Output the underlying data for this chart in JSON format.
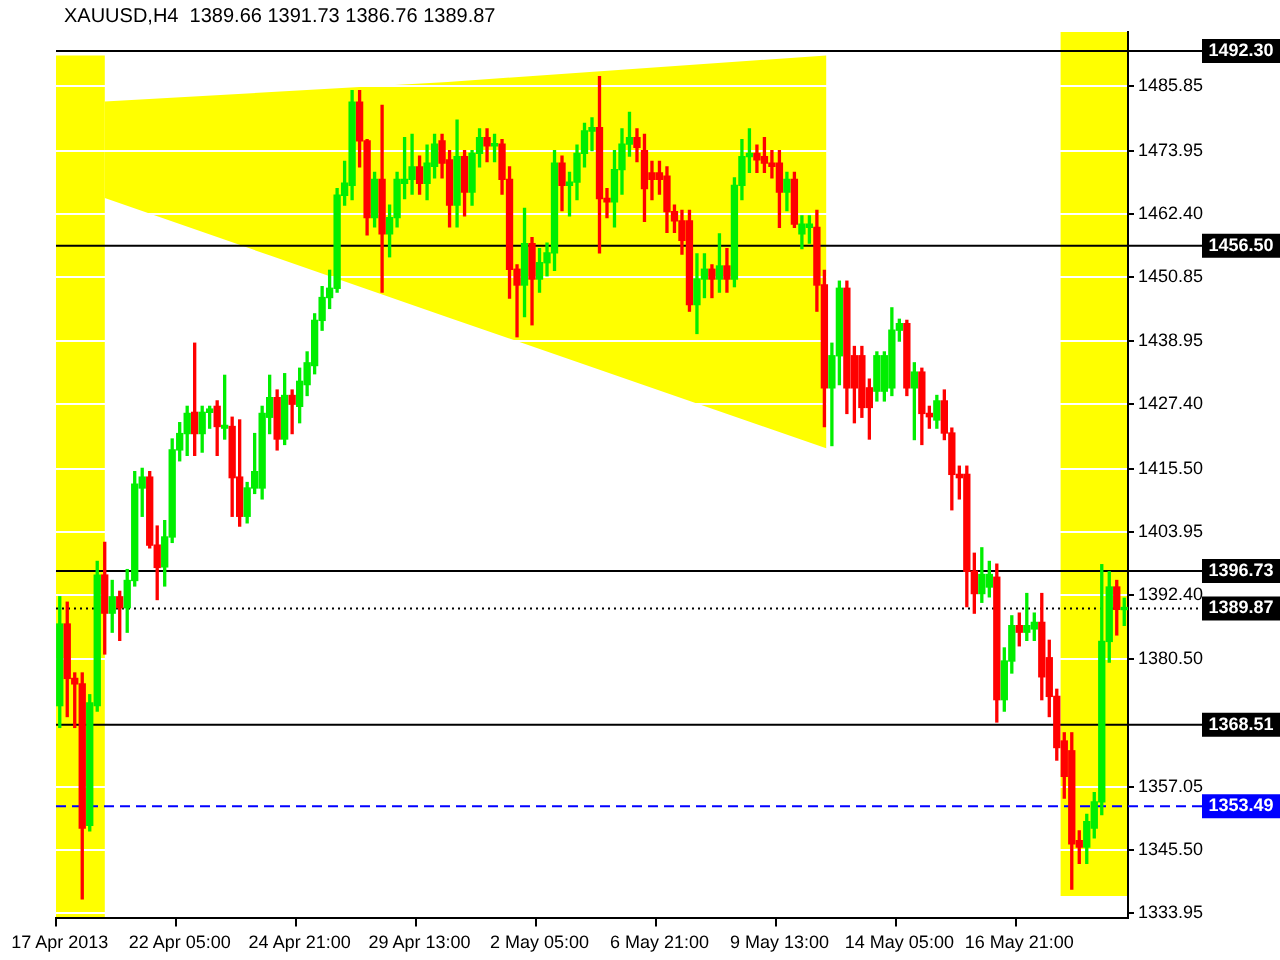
{
  "chart_data": {
    "type": "candlestick",
    "title": "XAUUSD,H4  1389.66 1391.73 1386.76 1389.87",
    "categories": [
      "17 Apr 2013",
      null,
      null,
      null,
      null,
      null,
      null,
      null,
      null,
      null,
      null,
      null,
      null,
      null,
      null,
      null,
      "22 Apr 05:00",
      null,
      null,
      null,
      null,
      null,
      null,
      null,
      null,
      null,
      null,
      null,
      null,
      null,
      null,
      null,
      "24 Apr 21:00",
      null,
      null,
      null,
      null,
      null,
      null,
      null,
      null,
      null,
      null,
      null,
      null,
      null,
      null,
      null,
      "29 Apr 13:00",
      null,
      null,
      null,
      null,
      null,
      null,
      null,
      null,
      null,
      null,
      null,
      null,
      null,
      null,
      null,
      "2 May 05:00",
      null,
      null,
      null,
      null,
      null,
      null,
      null,
      null,
      null,
      null,
      null,
      null,
      null,
      null,
      null,
      "6 May 21:00",
      null,
      null,
      null,
      null,
      null,
      null,
      null,
      null,
      null,
      null,
      null,
      null,
      null,
      null,
      null,
      "9 May 13:00",
      null,
      null,
      null,
      null,
      null,
      null,
      null,
      null,
      null,
      null,
      null,
      null,
      null,
      null,
      null,
      "14 May 05:00",
      null,
      null,
      null,
      null,
      null,
      null,
      null,
      null,
      null,
      null,
      null,
      null,
      null,
      null,
      null,
      "16 May 21:00",
      null,
      null,
      null,
      null,
      null,
      null,
      null,
      null,
      null,
      null,
      null,
      null,
      null,
      null
    ],
    "ohlc": [
      [
        1372,
        1392,
        1368,
        1387
      ],
      [
        1387,
        1391,
        1370,
        1377
      ],
      [
        1377,
        1378,
        1368,
        1376
      ],
      [
        1376,
        1378,
        1336.5,
        1349.5
      ],
      [
        1350,
        1374,
        1349,
        1372.5
      ],
      [
        1372,
        1398.5,
        1371,
        1396
      ],
      [
        1396,
        1402,
        1381.5,
        1389
      ],
      [
        1389,
        1395,
        1385.5,
        1392
      ],
      [
        1392,
        1393,
        1384,
        1390
      ],
      [
        1390,
        1397,
        1385.5,
        1395
      ],
      [
        1395,
        1415,
        1394,
        1412.7
      ],
      [
        1412,
        1415.6,
        1406.8,
        1414
      ],
      [
        1414,
        1415,
        1401,
        1401.5
      ],
      [
        1401.5,
        1405,
        1391.5,
        1397.4
      ],
      [
        1397.5,
        1406,
        1394,
        1403
      ],
      [
        1403,
        1421,
        1402,
        1419
      ],
      [
        1419,
        1424,
        1417,
        1422
      ],
      [
        1422,
        1427,
        1418,
        1425.7
      ],
      [
        1425.9,
        1438.6,
        1418,
        1422
      ],
      [
        1422,
        1427,
        1418.6,
        1425.9
      ],
      [
        1425.9,
        1427,
        1423,
        1426.5
      ],
      [
        1427,
        1428,
        1418,
        1423.3
      ],
      [
        1423,
        1432.7,
        1421,
        1423.5
      ],
      [
        1423.3,
        1425,
        1406.8,
        1413.9
      ],
      [
        1414,
        1424.5,
        1405,
        1406.8
      ],
      [
        1406.8,
        1413,
        1405.6,
        1412
      ],
      [
        1412,
        1422,
        1411,
        1415
      ],
      [
        1412,
        1427,
        1410,
        1425.7
      ],
      [
        1425,
        1432.7,
        1422,
        1428.6
      ],
      [
        1428.6,
        1430,
        1419,
        1421
      ],
      [
        1421,
        1433,
        1420,
        1429
      ],
      [
        1429,
        1430,
        1422,
        1427.4
      ],
      [
        1427,
        1434,
        1424,
        1431.6
      ],
      [
        1431,
        1437,
        1429,
        1435
      ],
      [
        1434.5,
        1444,
        1433,
        1442.8
      ],
      [
        1442.8,
        1449,
        1441,
        1447
      ],
      [
        1447,
        1452,
        1445,
        1448.7
      ],
      [
        1448.7,
        1467,
        1448,
        1465.8
      ],
      [
        1465.8,
        1472,
        1464,
        1468
      ],
      [
        1467.6,
        1485,
        1465,
        1482.9
      ],
      [
        1482.9,
        1485,
        1471,
        1475.8
      ],
      [
        1475.8,
        1476,
        1458.5,
        1461.7
      ],
      [
        1461.7,
        1470,
        1460,
        1468.7
      ],
      [
        1468.7,
        1482.3,
        1448,
        1458.7
      ],
      [
        1458.7,
        1464,
        1454.5,
        1461.7
      ],
      [
        1461.7,
        1470,
        1460,
        1468.7
      ],
      [
        1468,
        1476.4,
        1465.2,
        1468.7
      ],
      [
        1468.7,
        1477,
        1466,
        1471
      ],
      [
        1471,
        1473,
        1466,
        1468
      ],
      [
        1468,
        1475,
        1465,
        1471.7
      ],
      [
        1471.1,
        1477,
        1469,
        1475.2
      ],
      [
        1475.8,
        1477,
        1469,
        1471.7
      ],
      [
        1472.3,
        1474,
        1460,
        1464
      ],
      [
        1464,
        1479.6,
        1460,
        1472.9
      ],
      [
        1472.9,
        1474,
        1462,
        1466.4
      ],
      [
        1466.4,
        1474,
        1464,
        1473.5
      ],
      [
        1473.5,
        1478,
        1471,
        1476.4
      ],
      [
        1476.4,
        1478,
        1472,
        1474.9
      ],
      [
        1474.9,
        1477,
        1472,
        1475.2
      ],
      [
        1475.2,
        1476,
        1466,
        1468.7
      ],
      [
        1468.7,
        1471,
        1446.9,
        1452.2
      ],
      [
        1452.2,
        1453,
        1439.8,
        1449.3
      ],
      [
        1449.3,
        1463.4,
        1443.5,
        1456.9
      ],
      [
        1456.9,
        1458,
        1442,
        1450.4
      ],
      [
        1450.4,
        1456,
        1448,
        1453.4
      ],
      [
        1453.4,
        1457,
        1451,
        1455.2
      ],
      [
        1455.2,
        1474,
        1452,
        1471.7
      ],
      [
        1471.7,
        1473,
        1463,
        1467.6
      ],
      [
        1467.6,
        1470,
        1462,
        1468.2
      ],
      [
        1468.2,
        1475,
        1465,
        1473.5
      ],
      [
        1473.5,
        1479,
        1471,
        1477.6
      ],
      [
        1477.6,
        1480,
        1474,
        1478.2
      ],
      [
        1478.2,
        1487.6,
        1455.2,
        1465.2
      ],
      [
        1465.2,
        1467,
        1461.7,
        1464.6
      ],
      [
        1464.6,
        1474,
        1460,
        1470.5
      ],
      [
        1470.5,
        1478,
        1466,
        1475.2
      ],
      [
        1475.2,
        1481,
        1473,
        1476.4
      ],
      [
        1476.4,
        1478,
        1472,
        1474.6
      ],
      [
        1474,
        1477,
        1461,
        1467
      ],
      [
        1469.9,
        1472,
        1465,
        1468.7
      ],
      [
        1469.9,
        1472,
        1466,
        1468.7
      ],
      [
        1469.3,
        1471,
        1459,
        1462.8
      ],
      [
        1462.8,
        1464,
        1459,
        1461.1
      ],
      [
        1461.1,
        1463,
        1455,
        1457.5
      ],
      [
        1461.1,
        1463,
        1444.5,
        1445.7
      ],
      [
        1445.7,
        1455,
        1440.4,
        1450.4
      ],
      [
        1450.4,
        1455,
        1447,
        1452.2
      ],
      [
        1452.2,
        1453,
        1447,
        1450.4
      ],
      [
        1450.4,
        1458.7,
        1448,
        1452.8
      ],
      [
        1452.8,
        1456,
        1448,
        1450.4
      ],
      [
        1450.4,
        1469,
        1449,
        1467.6
      ],
      [
        1467.6,
        1476,
        1465,
        1472.9
      ],
      [
        1472.9,
        1478,
        1470,
        1473.5
      ],
      [
        1473.5,
        1475,
        1470,
        1472.3
      ],
      [
        1472.9,
        1476.4,
        1470,
        1471.7
      ],
      [
        1471.7,
        1474,
        1469,
        1471.1
      ],
      [
        1471.7,
        1474,
        1459.9,
        1466.4
      ],
      [
        1466.4,
        1470,
        1463,
        1468.7
      ],
      [
        1468.7,
        1470,
        1459.9,
        1460.5
      ],
      [
        1458.7,
        1462,
        1456,
        1460.5
      ],
      [
        1459.9,
        1462,
        1457,
        1460.5
      ],
      [
        1459.9,
        1463,
        1444.5,
        1449.3
      ],
      [
        1449.3,
        1452,
        1423.3,
        1430.4
      ],
      [
        1430.4,
        1438.6,
        1419.8,
        1436.3
      ],
      [
        1436.3,
        1450,
        1431,
        1448.7
      ],
      [
        1448.7,
        1450,
        1425.7,
        1430.4
      ],
      [
        1436.3,
        1438,
        1424,
        1430.4
      ],
      [
        1436.3,
        1438,
        1425,
        1426.8
      ],
      [
        1430.4,
        1432,
        1421,
        1426.8
      ],
      [
        1429.8,
        1437,
        1428,
        1436.3
      ],
      [
        1429.8,
        1437,
        1428,
        1436.3
      ],
      [
        1430.4,
        1445.1,
        1429,
        1441
      ],
      [
        1441,
        1443,
        1439,
        1442.2
      ],
      [
        1442.2,
        1442.8,
        1429,
        1430.4
      ],
      [
        1430.4,
        1435,
        1420.9,
        1433.3
      ],
      [
        1433.3,
        1434,
        1420,
        1425.7
      ],
      [
        1425.7,
        1427,
        1423,
        1425.1
      ],
      [
        1424.5,
        1429,
        1423,
        1428
      ],
      [
        1428,
        1430,
        1420.9,
        1422.1
      ],
      [
        1422.1,
        1423,
        1408,
        1414.5
      ],
      [
        1414.5,
        1416,
        1410,
        1413.9
      ],
      [
        1414.5,
        1416,
        1390.2,
        1396.7
      ],
      [
        1396.7,
        1400,
        1389,
        1392.6
      ],
      [
        1392.6,
        1401,
        1391,
        1396.1
      ],
      [
        1393.8,
        1398.5,
        1392,
        1396.1
      ],
      [
        1395.6,
        1398,
        1369,
        1373.1
      ],
      [
        1373.1,
        1382.6,
        1371,
        1380.2
      ],
      [
        1380.2,
        1388.5,
        1378,
        1386.7
      ],
      [
        1386.7,
        1389,
        1383,
        1385.5
      ],
      [
        1385.5,
        1392.6,
        1384,
        1386.7
      ],
      [
        1386.1,
        1389,
        1384,
        1387.3
      ],
      [
        1387.3,
        1392.6,
        1373.1,
        1377.3
      ],
      [
        1380.8,
        1384,
        1370,
        1373.7
      ],
      [
        1373.7,
        1375,
        1362,
        1364.3
      ],
      [
        1365.5,
        1367,
        1355,
        1359
      ],
      [
        1363.7,
        1367,
        1338.3,
        1346.6
      ],
      [
        1347.2,
        1349,
        1343,
        1346
      ],
      [
        1346,
        1352,
        1343,
        1350.7
      ],
      [
        1349.5,
        1356,
        1347.7,
        1354.3
      ],
      [
        1354.3,
        1397.9,
        1352,
        1383.8
      ],
      [
        1383.8,
        1396.6,
        1380,
        1393.8
      ],
      [
        1393.8,
        1395,
        1385,
        1389.7
      ],
      [
        1389.66,
        1391.73,
        1386.76,
        1389.87
      ]
    ],
    "ylim": [
      1332.9,
      1495.8
    ],
    "yticks": [
      1333.95,
      {
        "value": 1345.5,
        "label": "1345.50"
      },
      1357.05,
      {
        "value": 1380.5,
        "label": "1380.50"
      },
      {
        "value": 1392.4,
        "label": "1392.40"
      },
      1403.95,
      {
        "value": 1415.5,
        "label": "1415.50"
      },
      {
        "value": 1427.4,
        "label": "1427.40"
      },
      1438.95,
      1450.85,
      {
        "value": 1462.4,
        "label": "1462.40"
      },
      1473.95,
      1485.85
    ],
    "grid": "y",
    "ref_lines": [
      {
        "axis": "y",
        "value": 1492.3,
        "label": "1492.30",
        "color": "#000000"
      },
      {
        "axis": "y",
        "value": 1456.5,
        "label": "1456.50",
        "color": "#000000"
      },
      {
        "axis": "y",
        "value": 1396.73,
        "label": "1396.73",
        "color": "#000000"
      },
      {
        "axis": "y",
        "value": 1389.87,
        "label": "1389.87",
        "color": "#000000",
        "line_style": "dotted"
      },
      {
        "axis": "y",
        "value": 1368.51,
        "label": "1368.51",
        "color": "#000000"
      },
      {
        "axis": "y",
        "value": 1353.49,
        "label": "1353.49",
        "color": "#0000ff",
        "line_style": "dashed"
      }
    ]
  }
}
